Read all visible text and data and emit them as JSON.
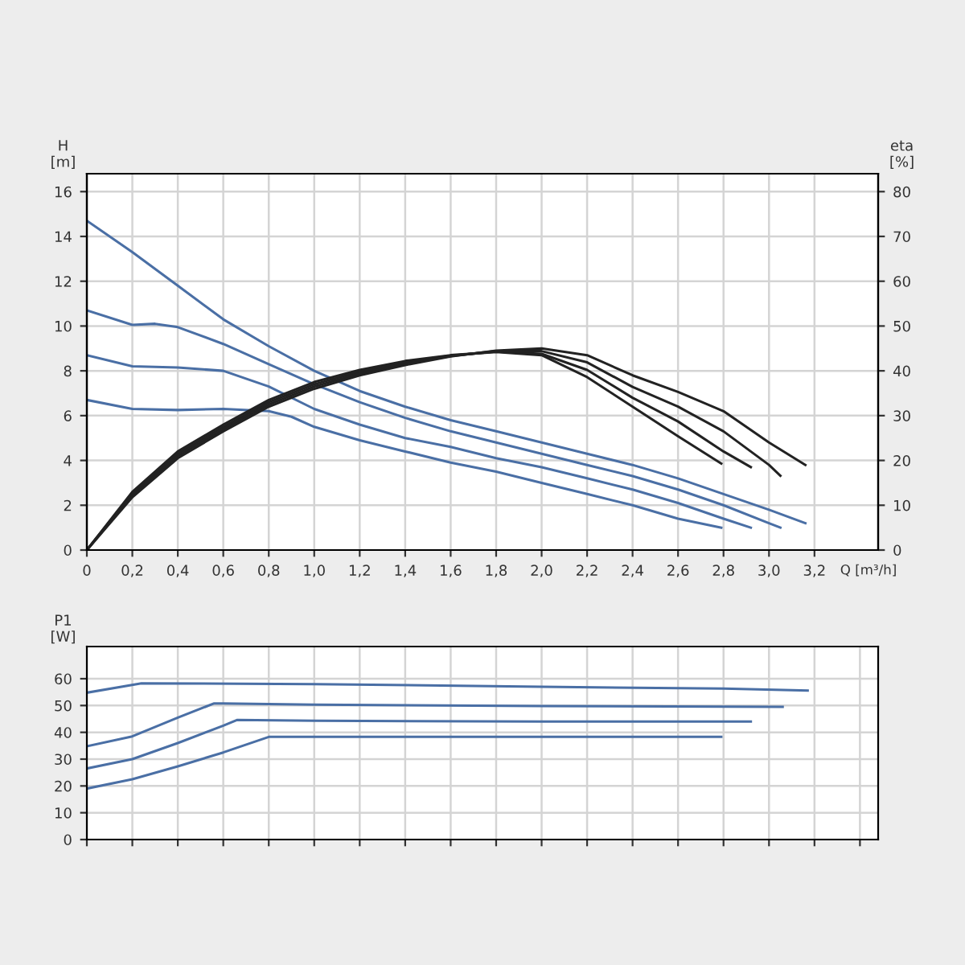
{
  "chart_data": [
    {
      "type": "line",
      "xlabel": "Q [m³/h]",
      "ylabel": "H\n[m]",
      "y2label": "eta\n[%]",
      "grid": true,
      "legend": false,
      "marker": "none",
      "line_style": "solid",
      "xlim": [
        0,
        3.48
      ],
      "xticks": [
        0,
        {
          "value": 0.2,
          "label": "0,2"
        },
        {
          "value": 0.4,
          "label": "0,4"
        },
        {
          "value": 0.6,
          "label": "0,6"
        },
        {
          "value": 0.8,
          "label": "0,8"
        },
        {
          "value": 1.0,
          "label": "1,0"
        },
        {
          "value": 1.2,
          "label": "1,2"
        },
        {
          "value": 1.4,
          "label": "1,4"
        },
        {
          "value": 1.6,
          "label": "1,6"
        },
        {
          "value": 1.8,
          "label": "1,8"
        },
        {
          "value": 2.0,
          "label": "2,0"
        },
        {
          "value": 2.2,
          "label": "2,2"
        },
        {
          "value": 2.4,
          "label": "2,4"
        },
        {
          "value": 2.6,
          "label": "2,6"
        },
        {
          "value": 2.8,
          "label": "2,8"
        },
        {
          "value": 3.0,
          "label": "3,0"
        },
        {
          "value": 3.2,
          "label": "3,2"
        }
      ],
      "ylim": [
        0,
        16.8
      ],
      "yticks": [
        0,
        2,
        4,
        6,
        8,
        10,
        12,
        14,
        16
      ],
      "y2lim": [
        0,
        84
      ],
      "y2ticks": [
        0,
        10,
        20,
        30,
        40,
        50,
        60,
        70,
        80
      ],
      "series": [
        {
          "color": "#4a6fa5",
          "x": [
            0,
            0.2,
            0.4,
            0.6,
            0.8,
            1.0,
            1.2,
            1.4,
            1.6,
            1.8,
            2.0,
            2.2,
            2.4,
            2.6,
            2.8,
            3.0,
            3.16
          ],
          "values": [
            14.7,
            13.3,
            11.8,
            10.3,
            9.1,
            8.0,
            7.1,
            6.4,
            5.8,
            5.3,
            4.8,
            4.3,
            3.8,
            3.2,
            2.5,
            1.8,
            1.2
          ]
        },
        {
          "color": "#4a6fa5",
          "x": [
            0,
            0.2,
            0.3,
            0.4,
            0.6,
            0.8,
            1.0,
            1.2,
            1.4,
            1.6,
            1.8,
            2.0,
            2.2,
            2.4,
            2.6,
            2.8,
            3.0,
            3.05
          ],
          "values": [
            10.7,
            10.05,
            10.1,
            9.95,
            9.2,
            8.3,
            7.4,
            6.6,
            5.9,
            5.3,
            4.8,
            4.3,
            3.8,
            3.3,
            2.7,
            2.0,
            1.2,
            1.0
          ]
        },
        {
          "color": "#4a6fa5",
          "x": [
            0,
            0.2,
            0.4,
            0.6,
            0.8,
            1.0,
            1.2,
            1.4,
            1.6,
            1.8,
            2.0,
            2.2,
            2.4,
            2.6,
            2.8,
            2.92
          ],
          "values": [
            8.7,
            8.2,
            8.15,
            8.0,
            7.3,
            6.3,
            5.6,
            5.0,
            4.6,
            4.1,
            3.7,
            3.2,
            2.7,
            2.1,
            1.4,
            1.0
          ]
        },
        {
          "color": "#4a6fa5",
          "x": [
            0,
            0.2,
            0.4,
            0.6,
            0.8,
            0.9,
            1.0,
            1.2,
            1.4,
            1.6,
            1.8,
            2.0,
            2.2,
            2.4,
            2.6,
            2.79
          ],
          "values": [
            6.7,
            6.3,
            6.25,
            6.3,
            6.2,
            5.95,
            5.5,
            4.9,
            4.4,
            3.9,
            3.5,
            3.0,
            2.5,
            2.0,
            1.4,
            1.0
          ]
        },
        {
          "color": "#222222",
          "axis": "y2",
          "x": [
            0,
            0.2,
            0.4,
            0.6,
            0.8,
            1.0,
            1.2,
            1.4,
            1.6,
            1.8,
            2.0,
            2.2,
            2.4,
            2.6,
            2.79
          ],
          "values": [
            0,
            13,
            22,
            28,
            33.5,
            37.5,
            40.2,
            42.2,
            43.5,
            44.2,
            43.5,
            38.6,
            32,
            25.4,
            19.3
          ]
        },
        {
          "color": "#222222",
          "axis": "y2",
          "x": [
            0,
            0.2,
            0.4,
            0.6,
            0.8,
            1.0,
            1.2,
            1.4,
            1.6,
            1.8,
            2.0,
            2.2,
            2.4,
            2.6,
            2.8,
            2.92
          ],
          "values": [
            0,
            12.6,
            21.5,
            27.5,
            33,
            37,
            39.8,
            42,
            43.4,
            44.3,
            43.8,
            40.2,
            34,
            28.7,
            22,
            18.5
          ]
        },
        {
          "color": "#222222",
          "axis": "y2",
          "x": [
            0,
            0.2,
            0.4,
            0.6,
            0.8,
            1.0,
            1.2,
            1.4,
            1.6,
            1.8,
            2.0,
            2.2,
            2.4,
            2.6,
            2.8,
            3.0,
            3.05
          ],
          "values": [
            0,
            12.2,
            21,
            27,
            32.5,
            36.5,
            39.4,
            41.6,
            43.3,
            44.4,
            44.4,
            41.9,
            36.4,
            32,
            26.5,
            19,
            16.6
          ]
        },
        {
          "color": "#222222",
          "axis": "y2",
          "x": [
            0,
            0.2,
            0.4,
            0.6,
            0.8,
            1.0,
            1.2,
            1.4,
            1.6,
            1.8,
            2.0,
            2.2,
            2.4,
            2.6,
            2.8,
            3.0,
            3.16
          ],
          "values": [
            0,
            11.8,
            20.5,
            26.5,
            32,
            36,
            39,
            41.3,
            43.2,
            44.5,
            45,
            43.5,
            39,
            35.3,
            31,
            24,
            19
          ]
        }
      ]
    },
    {
      "type": "line",
      "ylabel": "P1\n[W]",
      "grid": true,
      "legend": false,
      "marker": "none",
      "line_style": "solid",
      "tick_labels": "y",
      "xlim": [
        0,
        3.48
      ],
      "xticks": [
        0,
        0.2,
        0.4,
        0.6,
        0.8,
        1.0,
        1.2,
        1.4,
        1.6,
        1.8,
        2.0,
        2.2,
        2.4,
        2.6,
        2.8,
        3.0,
        3.2,
        3.4
      ],
      "ylim": [
        0,
        72
      ],
      "yticks": [
        0,
        10,
        20,
        30,
        40,
        50,
        60
      ],
      "series": [
        {
          "color": "#4a6fa5",
          "x": [
            0,
            0.24,
            1.0,
            2.0,
            2.8,
            3.17
          ],
          "values": [
            54.8,
            58.3,
            58,
            57,
            56.3,
            55.6
          ]
        },
        {
          "color": "#4a6fa5",
          "x": [
            0,
            0.2,
            0.4,
            0.56,
            0.6,
            1.0,
            2.0,
            3.06
          ],
          "values": [
            34.8,
            38.5,
            45.5,
            50.8,
            50.8,
            50.3,
            49.8,
            49.5
          ]
        },
        {
          "color": "#4a6fa5",
          "x": [
            0,
            0.2,
            0.4,
            0.6,
            0.66,
            1.0,
            2.0,
            2.92
          ],
          "values": [
            26.5,
            30,
            36,
            42.5,
            44.6,
            44.3,
            44,
            44
          ]
        },
        {
          "color": "#4a6fa5",
          "x": [
            0,
            0.2,
            0.4,
            0.6,
            0.8,
            1.0,
            2.0,
            2.79
          ],
          "values": [
            19,
            22.5,
            27.3,
            32.5,
            38.3,
            38.3,
            38.3,
            38.3
          ]
        }
      ]
    }
  ]
}
